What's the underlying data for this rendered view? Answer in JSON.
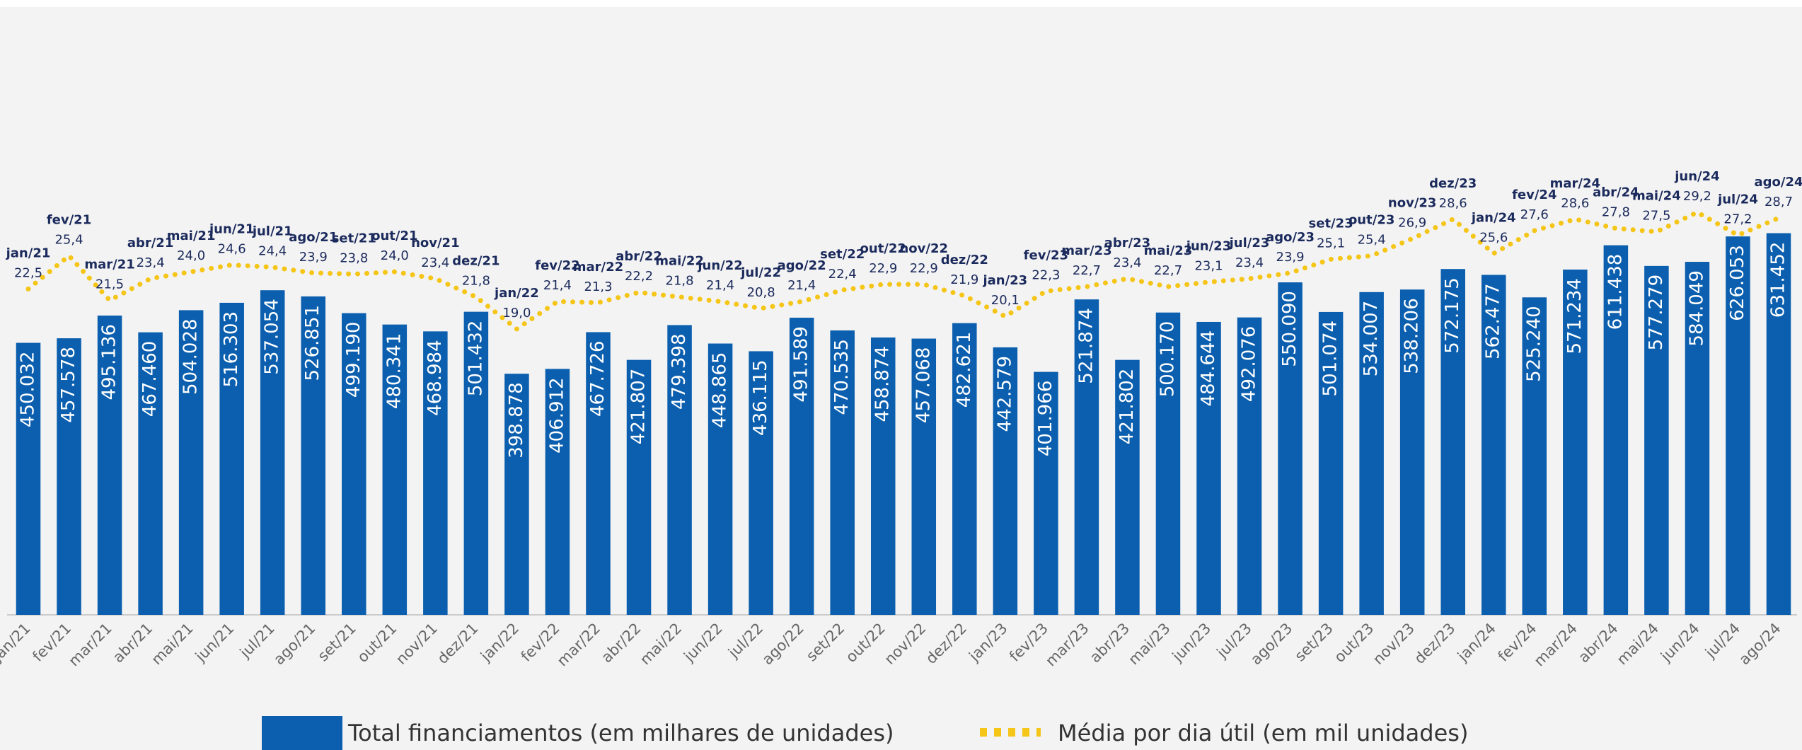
{
  "chart_data": {
    "type": "combo",
    "categories": [
      "jan/21",
      "fev/21",
      "mar/21",
      "abr/21",
      "mai/21",
      "jun/21",
      "jul/21",
      "ago/21",
      "set/21",
      "out/21",
      "nov/21",
      "dez/21",
      "jan/22",
      "fev/22",
      "mar/22",
      "abr/22",
      "mai/22",
      "jun/22",
      "jul/22",
      "ago/22",
      "set/22",
      "out/22",
      "nov/22",
      "dez/22",
      "jan/23",
      "fev/23",
      "mar/23",
      "abr/23",
      "mai/23",
      "jun/23",
      "jul/23",
      "ago/23",
      "set/23",
      "out/23",
      "nov/23",
      "dez/23",
      "jan/24",
      "fev/24",
      "mar/24",
      "abr/24",
      "mai/24",
      "jun/24",
      "jul/24",
      "ago/24"
    ],
    "series": [
      {
        "name": "Total financiamentos (em milhares de unidades)",
        "type": "bar",
        "color": "#0b5fae",
        "values": [
          450.032,
          457.578,
          495.136,
          467.46,
          504.028,
          516.303,
          537.054,
          526.851,
          499.19,
          480.341,
          468.984,
          501.432,
          398.878,
          406.912,
          467.726,
          421.807,
          479.398,
          448.865,
          436.115,
          491.589,
          470.535,
          458.874,
          457.068,
          482.621,
          442.579,
          401.966,
          521.874,
          421.802,
          500.17,
          484.644,
          492.076,
          550.09,
          501.074,
          534.007,
          538.206,
          572.175,
          562.477,
          525.24,
          571.234,
          611.438,
          577.279,
          584.049,
          626.053,
          631.452
        ],
        "value_labels": [
          "450.032",
          "457.578",
          "495.136",
          "467.460",
          "504.028",
          "516.303",
          "537.054",
          "526.851",
          "499.190",
          "480.341",
          "468.984",
          "501.432",
          "398.878",
          "406.912",
          "467.726",
          "421.807",
          "479.398",
          "448.865",
          "436.115",
          "491.589",
          "470.535",
          "458.874",
          "457.068",
          "482.621",
          "442.579",
          "401.966",
          "521.874",
          "421.802",
          "500.170",
          "484.644",
          "492.076",
          "550.090",
          "501.074",
          "534.007",
          "538.206",
          "572.175",
          "562.477",
          "525.240",
          "571.234",
          "611.438",
          "577.279",
          "584.049",
          "626.053",
          "631.452"
        ]
      },
      {
        "name": "Média por dia útil (em mil unidades)",
        "type": "line",
        "axis": "y2",
        "color": "#f5c518",
        "values": [
          22.5,
          25.4,
          21.5,
          23.4,
          24.0,
          24.6,
          24.4,
          23.9,
          23.8,
          24.0,
          23.4,
          21.8,
          19.0,
          21.4,
          21.3,
          22.2,
          21.8,
          21.4,
          20.8,
          21.4,
          22.4,
          22.9,
          22.9,
          21.9,
          20.1,
          22.3,
          22.7,
          23.4,
          22.7,
          23.1,
          23.4,
          23.9,
          25.1,
          25.4,
          26.9,
          28.6,
          25.6,
          27.6,
          28.6,
          27.8,
          27.5,
          29.2,
          27.2,
          28.7
        ],
        "value_labels": [
          "22,5",
          "25,4",
          "21,5",
          "23,4",
          "24,0",
          "24,6",
          "24,4",
          "23,9",
          "23,8",
          "24,0",
          "23,4",
          "21,8",
          "19,0",
          "21,4",
          "21,3",
          "22,2",
          "21,8",
          "21,4",
          "20,8",
          "21,4",
          "22,4",
          "22,9",
          "22,9",
          "21,9",
          "20,1",
          "22,3",
          "22,7",
          "23,4",
          "22,7",
          "23,1",
          "23,4",
          "23,9",
          "25,1",
          "25,4",
          "26,9",
          "28,6",
          "25,6",
          "27,6",
          "28,6",
          "27,8",
          "27,5",
          "29,2",
          "27,2",
          "28,7"
        ]
      }
    ],
    "ylim": [
      0,
      700
    ],
    "y2lim": [
      -6,
      31
    ]
  }
}
